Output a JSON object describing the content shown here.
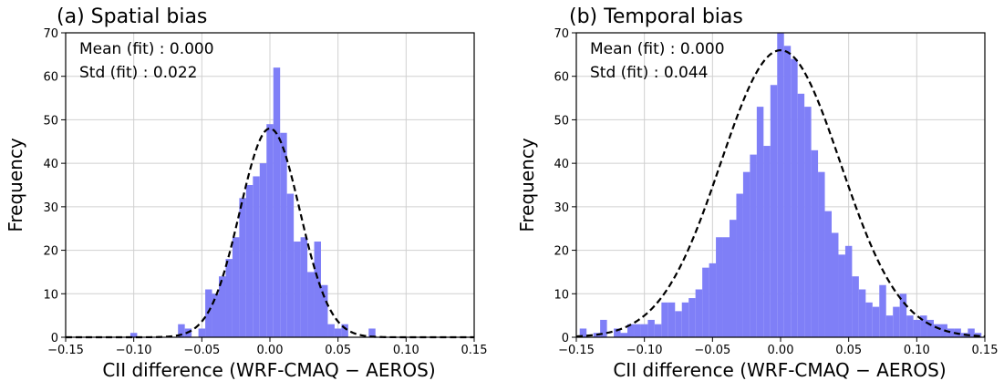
{
  "chart_data": [
    {
      "type": "bar",
      "title": "(a) Spatial bias",
      "xlabel": "CII difference (WRF-CMAQ − AEROS)",
      "ylabel": "Frequency",
      "xlim": [
        -0.15,
        0.15
      ],
      "ylim": [
        0,
        70
      ],
      "grid": true,
      "bar_color": "#7f7ff7",
      "fit_color": "#000000",
      "bin_width": 0.005,
      "annotations": [
        "Mean (fit) : 0.000",
        "Std (fit) : 0.022"
      ],
      "fit": {
        "mean": 0.0,
        "std": 0.022,
        "peak": 48
      },
      "xticks": [
        "−0.15",
        "−0.10",
        "−0.05",
        "0.00",
        "0.05",
        "0.10",
        "0.15"
      ],
      "xtick_values": [
        -0.15,
        -0.1,
        -0.05,
        0.0,
        0.05,
        0.1,
        0.15
      ],
      "yticks": [
        "0",
        "10",
        "20",
        "30",
        "40",
        "50",
        "60",
        "70"
      ],
      "ytick_values": [
        0,
        10,
        20,
        30,
        40,
        50,
        60,
        70
      ],
      "bins": [
        {
          "x": -0.1,
          "y": 1
        },
        {
          "x": -0.065,
          "y": 3
        },
        {
          "x": -0.06,
          "y": 2
        },
        {
          "x": -0.055,
          "y": 0
        },
        {
          "x": -0.05,
          "y": 2
        },
        {
          "x": -0.045,
          "y": 11
        },
        {
          "x": -0.04,
          "y": 10
        },
        {
          "x": -0.035,
          "y": 14
        },
        {
          "x": -0.03,
          "y": 18
        },
        {
          "x": -0.025,
          "y": 23
        },
        {
          "x": -0.02,
          "y": 32
        },
        {
          "x": -0.015,
          "y": 35
        },
        {
          "x": -0.01,
          "y": 37
        },
        {
          "x": -0.005,
          "y": 40
        },
        {
          "x": 0.0,
          "y": 49
        },
        {
          "x": 0.005,
          "y": 62
        },
        {
          "x": 0.01,
          "y": 47
        },
        {
          "x": 0.015,
          "y": 33
        },
        {
          "x": 0.02,
          "y": 22
        },
        {
          "x": 0.025,
          "y": 23
        },
        {
          "x": 0.03,
          "y": 15
        },
        {
          "x": 0.035,
          "y": 22
        },
        {
          "x": 0.04,
          "y": 12
        },
        {
          "x": 0.045,
          "y": 3
        },
        {
          "x": 0.05,
          "y": 2
        },
        {
          "x": 0.055,
          "y": 3
        },
        {
          "x": 0.075,
          "y": 2
        }
      ]
    },
    {
      "type": "bar",
      "title": "(b) Temporal bias",
      "xlabel": "CII difference (WRF-CMAQ − AEROS)",
      "ylabel": "Frequency",
      "xlim": [
        -0.15,
        0.15
      ],
      "ylim": [
        0,
        70
      ],
      "grid": true,
      "bar_color": "#7f7ff7",
      "fit_color": "#000000",
      "bin_width": 0.005,
      "annotations": [
        "Mean (fit) : 0.000",
        "Std (fit) : 0.044"
      ],
      "fit": {
        "mean": 0.0,
        "std": 0.044,
        "peak": 66
      },
      "xticks": [
        "−0.15",
        "−0.10",
        "−0.05",
        "0.00",
        "0.05",
        "0.10",
        "0.15"
      ],
      "xtick_values": [
        -0.15,
        -0.1,
        -0.05,
        0.0,
        0.05,
        0.1,
        0.15
      ],
      "yticks": [
        "0",
        "10",
        "20",
        "30",
        "40",
        "50",
        "60",
        "70"
      ],
      "ytick_values": [
        0,
        10,
        20,
        30,
        40,
        50,
        60,
        70
      ],
      "bins": [
        {
          "x": -0.145,
          "y": 2
        },
        {
          "x": -0.14,
          "y": 0
        },
        {
          "x": -0.135,
          "y": 1
        },
        {
          "x": -0.13,
          "y": 4
        },
        {
          "x": -0.125,
          "y": 0
        },
        {
          "x": -0.12,
          "y": 2
        },
        {
          "x": -0.115,
          "y": 1
        },
        {
          "x": -0.11,
          "y": 3
        },
        {
          "x": -0.105,
          "y": 3
        },
        {
          "x": -0.1,
          "y": 3
        },
        {
          "x": -0.095,
          "y": 4
        },
        {
          "x": -0.09,
          "y": 3
        },
        {
          "x": -0.085,
          "y": 8
        },
        {
          "x": -0.08,
          "y": 8
        },
        {
          "x": -0.075,
          "y": 6
        },
        {
          "x": -0.07,
          "y": 8
        },
        {
          "x": -0.065,
          "y": 9
        },
        {
          "x": -0.06,
          "y": 11
        },
        {
          "x": -0.055,
          "y": 16
        },
        {
          "x": -0.05,
          "y": 17
        },
        {
          "x": -0.045,
          "y": 23
        },
        {
          "x": -0.04,
          "y": 23
        },
        {
          "x": -0.035,
          "y": 27
        },
        {
          "x": -0.03,
          "y": 33
        },
        {
          "x": -0.025,
          "y": 38
        },
        {
          "x": -0.02,
          "y": 42
        },
        {
          "x": -0.015,
          "y": 53
        },
        {
          "x": -0.01,
          "y": 44
        },
        {
          "x": -0.005,
          "y": 58
        },
        {
          "x": 0.0,
          "y": 70
        },
        {
          "x": 0.005,
          "y": 67
        },
        {
          "x": 0.01,
          "y": 64
        },
        {
          "x": 0.015,
          "y": 56
        },
        {
          "x": 0.02,
          "y": 53
        },
        {
          "x": 0.025,
          "y": 43
        },
        {
          "x": 0.03,
          "y": 38
        },
        {
          "x": 0.035,
          "y": 29
        },
        {
          "x": 0.04,
          "y": 24
        },
        {
          "x": 0.045,
          "y": 19
        },
        {
          "x": 0.05,
          "y": 21
        },
        {
          "x": 0.055,
          "y": 14
        },
        {
          "x": 0.06,
          "y": 11
        },
        {
          "x": 0.065,
          "y": 8
        },
        {
          "x": 0.07,
          "y": 7
        },
        {
          "x": 0.075,
          "y": 12
        },
        {
          "x": 0.08,
          "y": 5
        },
        {
          "x": 0.085,
          "y": 7
        },
        {
          "x": 0.09,
          "y": 10
        },
        {
          "x": 0.095,
          "y": 5
        },
        {
          "x": 0.1,
          "y": 4
        },
        {
          "x": 0.105,
          "y": 5
        },
        {
          "x": 0.11,
          "y": 4
        },
        {
          "x": 0.115,
          "y": 3
        },
        {
          "x": 0.12,
          "y": 3
        },
        {
          "x": 0.125,
          "y": 2
        },
        {
          "x": 0.13,
          "y": 2
        },
        {
          "x": 0.135,
          "y": 1
        },
        {
          "x": 0.14,
          "y": 2
        },
        {
          "x": 0.145,
          "y": 1
        }
      ]
    }
  ]
}
